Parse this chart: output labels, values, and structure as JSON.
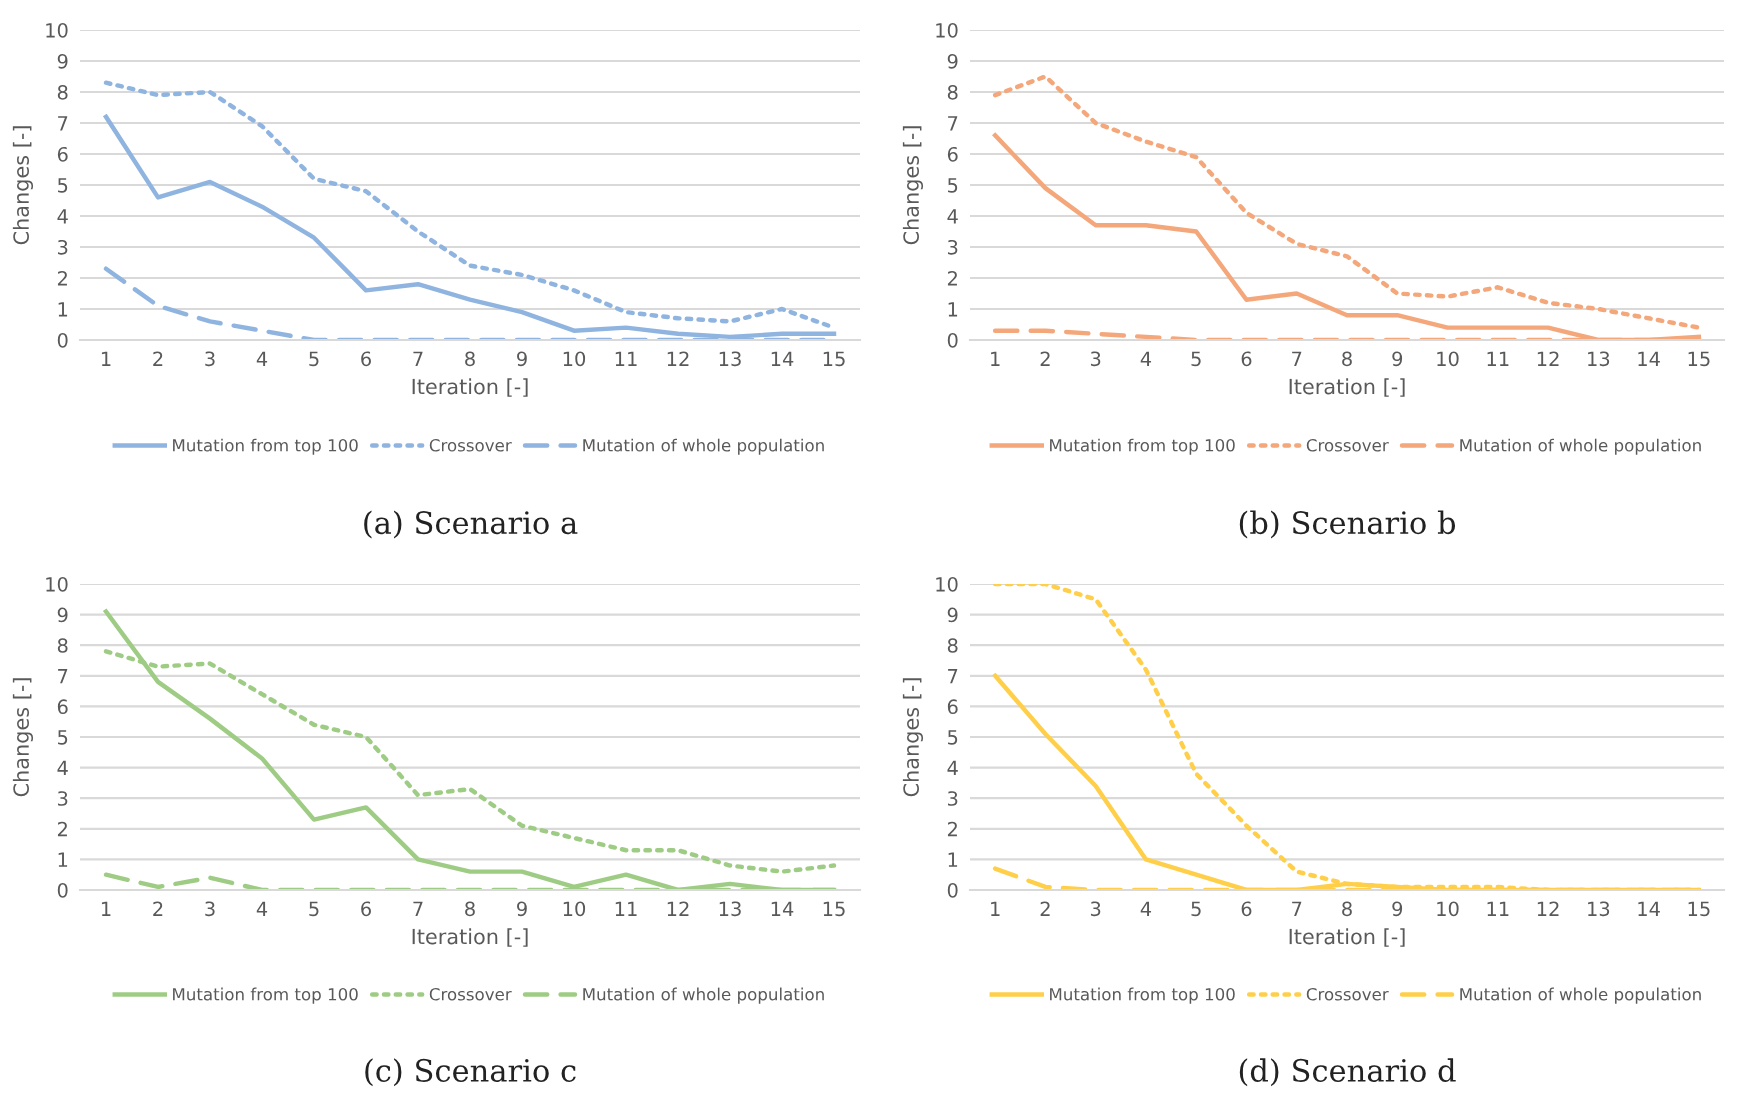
{
  "chart_data": [
    {
      "type": "line",
      "title": "(a) Scenario a",
      "xlabel": "Iteration [-]",
      "ylabel": "Changes [-]",
      "categories": [
        "1",
        "2",
        "3",
        "4",
        "5",
        "6",
        "7",
        "8",
        "9",
        "10",
        "11",
        "12",
        "13",
        "14",
        "15"
      ],
      "ylim": [
        0,
        10
      ],
      "yticks": [
        0,
        1,
        2,
        3,
        4,
        5,
        6,
        7,
        8,
        9,
        10
      ],
      "grid": "y",
      "legend": "bottom",
      "series": [
        {
          "name": "Mutation from top 100",
          "color": "#8fb4e0",
          "line_style": "solid",
          "values": [
            7.2,
            4.6,
            5.1,
            4.3,
            3.3,
            1.6,
            1.8,
            1.3,
            0.9,
            0.3,
            0.4,
            0.2,
            0.1,
            0.2,
            0.2
          ]
        },
        {
          "name": "Crossover",
          "color": "#8fb4e0",
          "line_style": "dotted",
          "values": [
            8.3,
            7.9,
            8.0,
            6.9,
            5.2,
            4.8,
            3.5,
            2.4,
            2.1,
            1.6,
            0.9,
            0.7,
            0.6,
            1.0,
            0.4
          ]
        },
        {
          "name": "Mutation of whole population",
          "color": "#8fb4e0",
          "line_style": "dashed",
          "values": [
            2.3,
            1.1,
            0.6,
            0.3,
            0,
            0,
            0,
            0,
            0,
            0,
            0,
            0,
            0,
            0,
            0
          ]
        }
      ]
    },
    {
      "type": "line",
      "title": "(b) Scenario b",
      "xlabel": "Iteration [-]",
      "ylabel": "Changes [-]",
      "categories": [
        "1",
        "2",
        "3",
        "4",
        "5",
        "6",
        "7",
        "8",
        "9",
        "10",
        "11",
        "12",
        "13",
        "14",
        "15"
      ],
      "ylim": [
        0,
        10
      ],
      "yticks": [
        0,
        1,
        2,
        3,
        4,
        5,
        6,
        7,
        8,
        9,
        10
      ],
      "grid": "y",
      "legend": "bottom",
      "series": [
        {
          "name": "Mutation from top 100",
          "color": "#f4a77a",
          "line_style": "solid",
          "values": [
            6.6,
            4.9,
            3.7,
            3.7,
            3.5,
            1.3,
            1.5,
            0.8,
            0.8,
            0.4,
            0.4,
            0.4,
            0,
            0,
            0.1
          ]
        },
        {
          "name": "Crossover",
          "color": "#f4a77a",
          "line_style": "dotted",
          "values": [
            7.9,
            8.5,
            7.0,
            6.4,
            5.9,
            4.1,
            3.1,
            2.7,
            1.5,
            1.4,
            1.7,
            1.2,
            1.0,
            0.7,
            0.4
          ]
        },
        {
          "name": "Mutation of whole population",
          "color": "#f4a77a",
          "line_style": "dashed",
          "values": [
            0.3,
            0.3,
            0.2,
            0.1,
            0,
            0,
            0,
            0,
            0,
            0,
            0,
            0,
            0,
            0,
            0
          ]
        }
      ]
    },
    {
      "type": "line",
      "title": "(c) Scenario c",
      "xlabel": "Iteration [-]",
      "ylabel": "Changes [-]",
      "categories": [
        "1",
        "2",
        "3",
        "4",
        "5",
        "6",
        "7",
        "8",
        "9",
        "10",
        "11",
        "12",
        "13",
        "14",
        "15"
      ],
      "ylim": [
        0,
        10
      ],
      "yticks": [
        0,
        1,
        2,
        3,
        4,
        5,
        6,
        7,
        8,
        9,
        10
      ],
      "grid": "y",
      "legend": "bottom",
      "series": [
        {
          "name": "Mutation from top 100",
          "color": "#9fcc84",
          "line_style": "solid",
          "values": [
            9.1,
            6.8,
            5.6,
            4.3,
            2.3,
            2.7,
            1.0,
            0.6,
            0.6,
            0.1,
            0.5,
            0,
            0.2,
            0,
            0
          ]
        },
        {
          "name": "Crossover",
          "color": "#9fcc84",
          "line_style": "dotted",
          "values": [
            7.8,
            7.3,
            7.4,
            6.4,
            5.4,
            5.0,
            3.1,
            3.3,
            2.1,
            1.7,
            1.3,
            1.3,
            0.8,
            0.6,
            0.8
          ]
        },
        {
          "name": "Mutation of whole population",
          "color": "#9fcc84",
          "line_style": "dashed",
          "values": [
            0.5,
            0.1,
            0.4,
            0,
            0,
            0,
            0,
            0,
            0,
            0,
            0,
            0,
            0,
            0,
            0
          ]
        }
      ]
    },
    {
      "type": "line",
      "title": "(d) Scenario d",
      "xlabel": "Iteration [-]",
      "ylabel": "Changes [-]",
      "categories": [
        "1",
        "2",
        "3",
        "4",
        "5",
        "6",
        "7",
        "8",
        "9",
        "10",
        "11",
        "12",
        "13",
        "14",
        "15"
      ],
      "ylim": [
        0,
        10
      ],
      "yticks": [
        0,
        1,
        2,
        3,
        4,
        5,
        6,
        7,
        8,
        9,
        10
      ],
      "grid": "y",
      "legend": "bottom",
      "series": [
        {
          "name": "Mutation from top 100",
          "color": "#ffcf4a",
          "line_style": "solid",
          "values": [
            7.0,
            5.1,
            3.4,
            1.0,
            0.5,
            0,
            0,
            0.2,
            0.1,
            0,
            0,
            0,
            0,
            0,
            0
          ]
        },
        {
          "name": "Crossover",
          "color": "#ffcf4a",
          "line_style": "dotted",
          "values": [
            10,
            10,
            9.5,
            7.2,
            3.8,
            2.1,
            0.6,
            0.2,
            0.1,
            0.1,
            0.1,
            0,
            0,
            0,
            0
          ]
        },
        {
          "name": "Mutation of whole population",
          "color": "#ffcf4a",
          "line_style": "dashed",
          "values": [
            0.7,
            0.1,
            0,
            0,
            0,
            0,
            0,
            0,
            0,
            0,
            0,
            0,
            0,
            0,
            0
          ]
        }
      ]
    }
  ]
}
